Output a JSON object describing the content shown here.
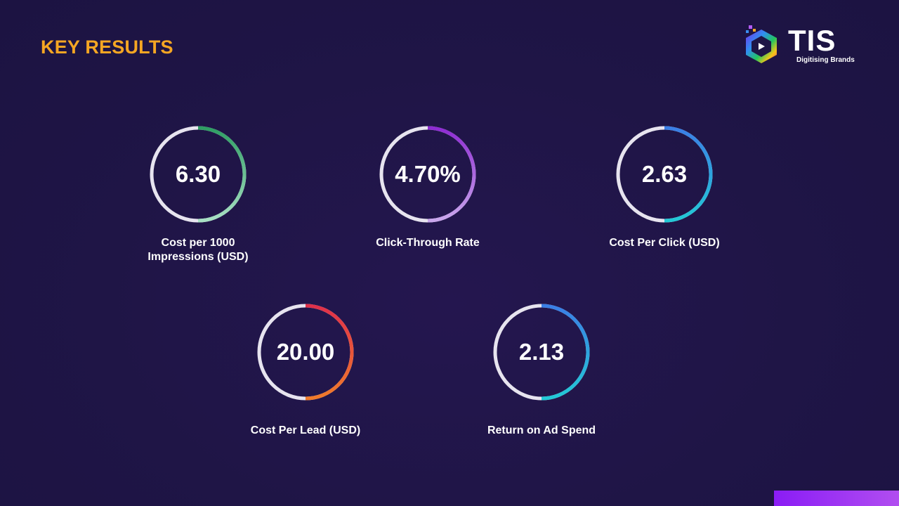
{
  "slide": {
    "title": "KEY RESULTS"
  },
  "brand": {
    "name": "TIS",
    "tagline": "Digitising Brands",
    "icon": "hexagon-play-logo"
  },
  "colors": {
    "title": "#f5a623",
    "background": "#1f1546",
    "ring_track": "#e7e4ef",
    "accent_bar": "#8a1cf5"
  },
  "kpis": [
    {
      "value": "6.30",
      "label": "Cost per 1000 Impressions (USD)",
      "colors": [
        "#2e9e63",
        "#a8e0c4"
      ]
    },
    {
      "value": "4.70%",
      "label": "Click-Through Rate",
      "colors": [
        "#8e2bd3",
        "#c9a6ec"
      ]
    },
    {
      "value": "2.63",
      "label": "Cost Per Click (USD)",
      "colors": [
        "#3a7ee6",
        "#22c9d6"
      ]
    },
    {
      "value": "20.00",
      "label": "Cost Per Lead (USD)",
      "colors": [
        "#e0304a",
        "#f07a2a"
      ]
    },
    {
      "value": "2.13",
      "label": "Return on Ad Spend",
      "colors": [
        "#3a7ee6",
        "#22c9d6"
      ]
    }
  ]
}
